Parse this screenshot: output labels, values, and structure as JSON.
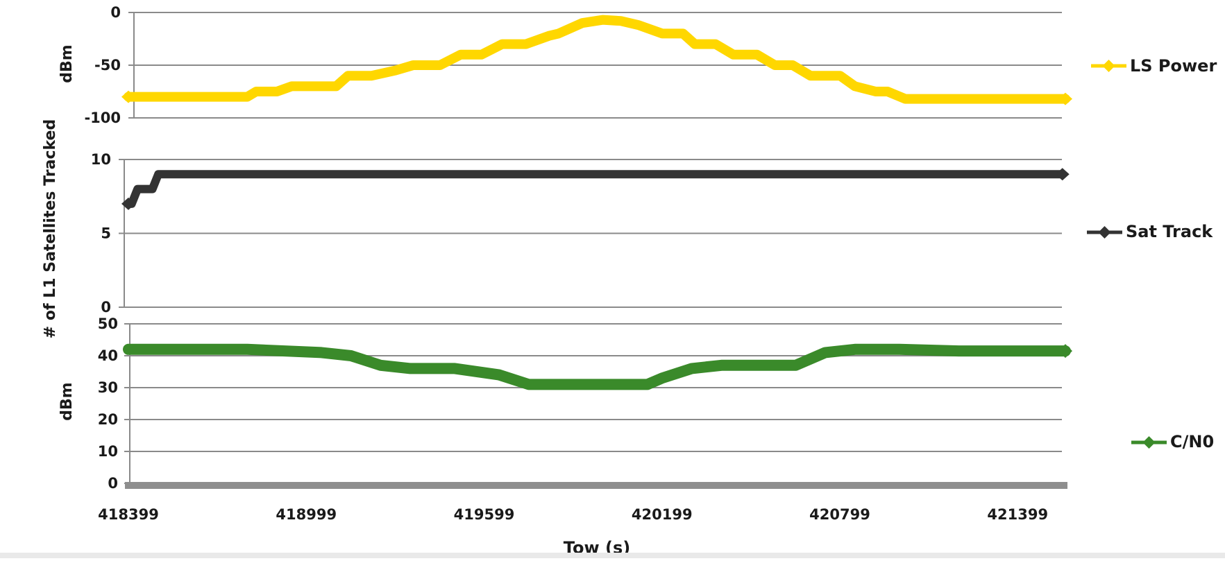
{
  "chart_data": [
    {
      "type": "line",
      "ylabel": "dBm",
      "ylim": [
        -100,
        0
      ],
      "yticks": [
        0,
        -50,
        -100
      ],
      "grid": true,
      "legend": "right",
      "series": [
        {
          "name": "LS Power",
          "color": "#ffd700",
          "x": [
            418399,
            418800,
            418830,
            418900,
            418950,
            419100,
            419140,
            419220,
            419300,
            419360,
            419450,
            419520,
            419590,
            419660,
            419740,
            419820,
            419850,
            419890,
            419930,
            420000,
            420060,
            420120,
            420200,
            420270,
            420310,
            420380,
            420440,
            420520,
            420580,
            420640,
            420700,
            420800,
            420850,
            420920,
            420960,
            421020,
            421080,
            421560
          ],
          "y": [
            -80,
            -80,
            -75,
            -75,
            -70,
            -70,
            -60,
            -60,
            -55,
            -50,
            -50,
            -40,
            -40,
            -30,
            -30,
            -22,
            -20,
            -15,
            -10,
            -7,
            -8,
            -12,
            -20,
            -20,
            -30,
            -30,
            -40,
            -40,
            -50,
            -50,
            -60,
            -60,
            -70,
            -75,
            -75,
            -82,
            -82,
            -82
          ]
        }
      ]
    },
    {
      "type": "line",
      "ylabel": "# of L1 Satellites Tracked",
      "ylim": [
        0,
        10
      ],
      "yticks": [
        10,
        5,
        0
      ],
      "grid": true,
      "legend": "right",
      "series": [
        {
          "name": "Sat Track",
          "color": "#333333",
          "x": [
            418399,
            418410,
            418430,
            418460,
            418480,
            418500,
            421550
          ],
          "y": [
            7,
            7,
            8,
            8,
            8,
            9,
            9
          ]
        }
      ]
    },
    {
      "type": "line",
      "ylabel": "dBm",
      "xlabel": "Tow (s)",
      "ylim": [
        0,
        50
      ],
      "yticks": [
        50,
        40,
        30,
        20,
        10,
        0
      ],
      "xticks": [
        418399,
        418999,
        419599,
        420199,
        420799,
        421399
      ],
      "grid": true,
      "legend": "right",
      "series": [
        {
          "name": "C/N0",
          "color": "#3a8a2a",
          "x": [
            418399,
            418800,
            419050,
            419150,
            419250,
            419350,
            419500,
            419650,
            419750,
            420000,
            420150,
            420200,
            420300,
            420400,
            420650,
            420750,
            420850,
            421000,
            421200,
            421560
          ],
          "y": [
            42,
            42,
            41,
            40,
            37,
            36,
            36,
            34,
            31,
            31,
            31,
            33,
            36,
            37,
            37,
            41,
            42,
            42,
            41.5,
            41.5
          ]
        }
      ]
    }
  ]
}
